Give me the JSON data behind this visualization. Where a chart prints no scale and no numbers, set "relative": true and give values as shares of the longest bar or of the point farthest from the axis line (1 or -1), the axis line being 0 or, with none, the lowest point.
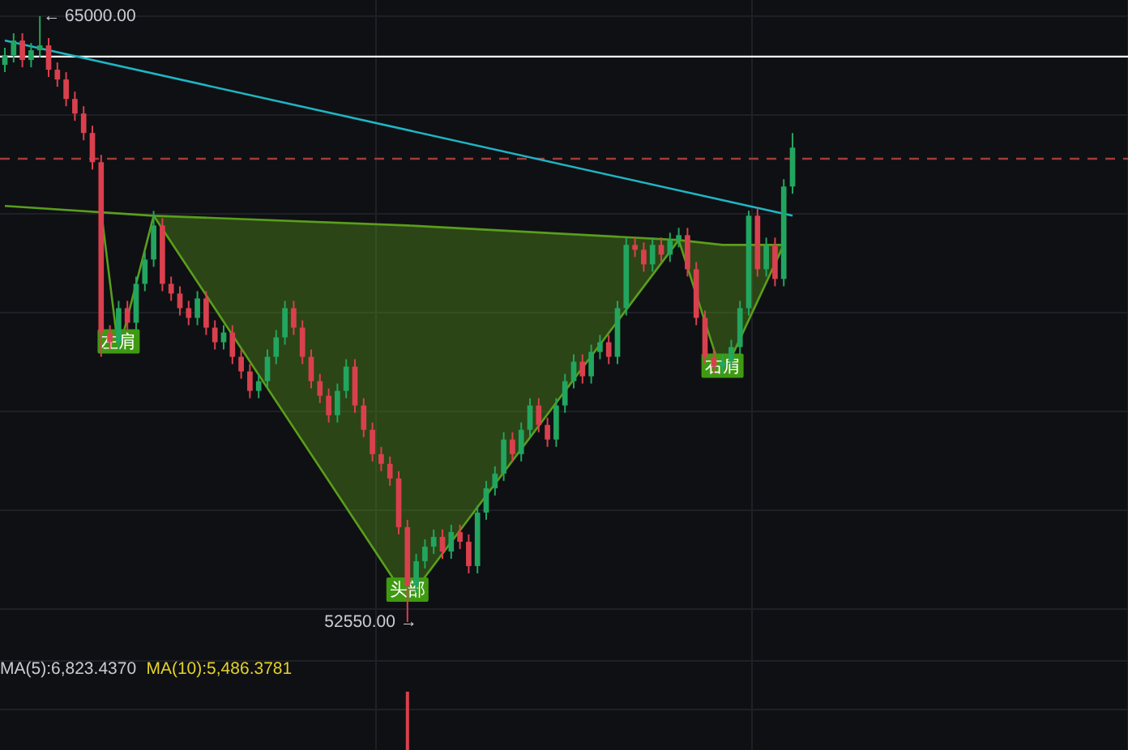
{
  "chart_data": [
    {
      "type": "candlestick",
      "categories": [
        null,
        null,
        null,
        null,
        null,
        null,
        null,
        null,
        null,
        null,
        null,
        null,
        null,
        null,
        null,
        null,
        null,
        null,
        null,
        null,
        null,
        null,
        null,
        null,
        null,
        null,
        null,
        null,
        null,
        null,
        null,
        null,
        null,
        null,
        null,
        null,
        null,
        null,
        null,
        null,
        null,
        null,
        null,
        null,
        null,
        null,
        null,
        null,
        null,
        null,
        null,
        null,
        null,
        null,
        null,
        null,
        null,
        null,
        null,
        null,
        null,
        null,
        null,
        null,
        null,
        null,
        null,
        null,
        null,
        null,
        null,
        null,
        null,
        null,
        null,
        null,
        null,
        null,
        null,
        null,
        null,
        null,
        null,
        null,
        null,
        null,
        null,
        null,
        null,
        null,
        null
      ],
      "ohlc": [
        [
          64000,
          64350,
          63850,
          64200
        ],
        [
          64200,
          64650,
          64050,
          64500
        ],
        [
          64500,
          64650,
          63950,
          64100
        ],
        [
          64100,
          64450,
          63950,
          64300
        ],
        [
          64300,
          65000,
          64150,
          64400
        ],
        [
          64400,
          64550,
          63750,
          63900
        ],
        [
          63900,
          64050,
          63550,
          63700
        ],
        [
          63700,
          63850,
          63150,
          63300
        ],
        [
          63300,
          63450,
          62850,
          63000
        ],
        [
          63000,
          63150,
          62450,
          62600
        ],
        [
          62600,
          62750,
          61850,
          62000
        ],
        [
          62000,
          62150,
          58000,
          58500
        ],
        [
          58500,
          58650,
          58150,
          58300
        ],
        [
          58300,
          59150,
          58150,
          59000
        ],
        [
          59000,
          59150,
          58550,
          58700
        ],
        [
          58700,
          59650,
          58550,
          59500
        ],
        [
          59500,
          60150,
          59350,
          60000
        ],
        [
          60000,
          61000,
          59850,
          60700
        ],
        [
          60700,
          60850,
          59350,
          59500
        ],
        [
          59500,
          59650,
          59150,
          59300
        ],
        [
          59300,
          59450,
          58850,
          59000
        ],
        [
          59000,
          59150,
          58650,
          58800
        ],
        [
          58800,
          59350,
          58650,
          59200
        ],
        [
          59200,
          59350,
          58450,
          58600
        ],
        [
          58600,
          58750,
          58150,
          58300
        ],
        [
          58300,
          58650,
          58150,
          58500
        ],
        [
          58500,
          58650,
          57850,
          58000
        ],
        [
          58000,
          58150,
          57550,
          57700
        ],
        [
          57700,
          57850,
          57150,
          57300
        ],
        [
          57300,
          57650,
          57150,
          57500
        ],
        [
          57500,
          58150,
          57350,
          58000
        ],
        [
          58000,
          58550,
          57850,
          58400
        ],
        [
          58400,
          59150,
          58250,
          59000
        ],
        [
          59000,
          59150,
          58450,
          58600
        ],
        [
          58600,
          58750,
          57850,
          58000
        ],
        [
          58000,
          58150,
          57350,
          57500
        ],
        [
          57500,
          57650,
          57050,
          57200
        ],
        [
          57200,
          57350,
          56650,
          56800
        ],
        [
          56800,
          57450,
          56650,
          57300
        ],
        [
          57300,
          57950,
          57150,
          57800
        ],
        [
          57800,
          57950,
          56850,
          57000
        ],
        [
          57000,
          57150,
          56350,
          56500
        ],
        [
          56500,
          56650,
          55850,
          56000
        ],
        [
          56000,
          56150,
          55650,
          55800
        ],
        [
          55800,
          55950,
          55350,
          55500
        ],
        [
          55500,
          55650,
          54350,
          54500
        ],
        [
          54500,
          54650,
          52550,
          53300
        ],
        [
          53300,
          53950,
          53150,
          53800
        ],
        [
          53800,
          54250,
          53650,
          54100
        ],
        [
          54100,
          54450,
          53950,
          54300
        ],
        [
          54300,
          54450,
          53850,
          54000
        ],
        [
          54000,
          54550,
          53850,
          54400
        ],
        [
          54400,
          54550,
          54050,
          54200
        ],
        [
          54200,
          54350,
          53550,
          53700
        ],
        [
          53700,
          54950,
          53550,
          54800
        ],
        [
          54800,
          55450,
          54650,
          55300
        ],
        [
          55300,
          55750,
          55150,
          55600
        ],
        [
          55600,
          56450,
          55450,
          56300
        ],
        [
          56300,
          56450,
          55850,
          56000
        ],
        [
          56000,
          56650,
          55850,
          56500
        ],
        [
          56500,
          57150,
          56350,
          57000
        ],
        [
          57000,
          57150,
          56450,
          56600
        ],
        [
          56600,
          56750,
          56150,
          56300
        ],
        [
          56300,
          57150,
          56150,
          57000
        ],
        [
          57000,
          57650,
          56850,
          57500
        ],
        [
          57500,
          58050,
          57350,
          57900
        ],
        [
          57900,
          58050,
          57450,
          57600
        ],
        [
          57600,
          58250,
          57450,
          58100
        ],
        [
          58100,
          58450,
          57950,
          58300
        ],
        [
          58300,
          58450,
          57850,
          58000
        ],
        [
          58000,
          59150,
          57850,
          59000
        ],
        [
          59000,
          60450,
          58850,
          60300
        ],
        [
          60300,
          60450,
          60050,
          60200
        ],
        [
          60200,
          60350,
          59750,
          59900
        ],
        [
          59900,
          60450,
          59750,
          60300
        ],
        [
          60300,
          60450,
          59950,
          60100
        ],
        [
          60100,
          60550,
          59950,
          60400
        ],
        [
          60400,
          60650,
          60250,
          60500
        ],
        [
          60500,
          60650,
          59650,
          59800
        ],
        [
          59800,
          59950,
          58650,
          58800
        ],
        [
          58800,
          58950,
          57850,
          58000
        ],
        [
          58000,
          58150,
          57650,
          57800
        ],
        [
          57800,
          58050,
          57650,
          57900
        ],
        [
          57900,
          58350,
          57750,
          58200
        ],
        [
          58200,
          59150,
          58050,
          59000
        ],
        [
          59000,
          61000,
          58850,
          60900
        ],
        [
          60900,
          61050,
          59650,
          59800
        ],
        [
          59800,
          60450,
          59650,
          60300
        ],
        [
          60300,
          60450,
          59450,
          59600
        ],
        [
          59600,
          61650,
          59450,
          61500
        ],
        [
          61500,
          62600,
          61350,
          62300
        ]
      ],
      "colors": [
        "#22a55f",
        "#22a55f",
        "#d9404e",
        "#22a55f",
        "#22a55f",
        "#d9404e",
        "#d9404e",
        "#d9404e",
        "#d9404e",
        "#d9404e",
        "#d9404e",
        "#d9404e",
        "#d9404e",
        "#22a55f",
        "#d9404e",
        "#22a55f",
        "#22a55f",
        "#22a55f",
        "#d9404e",
        "#d9404e",
        "#d9404e",
        "#d9404e",
        "#22a55f",
        "#d9404e",
        "#d9404e",
        "#22a55f",
        "#d9404e",
        "#d9404e",
        "#d9404e",
        "#22a55f",
        "#22a55f",
        "#22a55f",
        "#22a55f",
        "#d9404e",
        "#d9404e",
        "#d9404e",
        "#d9404e",
        "#d9404e",
        "#22a55f",
        "#22a55f",
        "#d9404e",
        "#d9404e",
        "#d9404e",
        "#d9404e",
        "#d9404e",
        "#d9404e",
        "#d9404e",
        "#22a55f",
        "#22a55f",
        "#22a55f",
        "#d9404e",
        "#22a55f",
        "#d9404e",
        "#d9404e",
        "#22a55f",
        "#22a55f",
        "#22a55f",
        "#22a55f",
        "#d9404e",
        "#22a55f",
        "#22a55f",
        "#d9404e",
        "#d9404e",
        "#22a55f",
        "#22a55f",
        "#22a55f",
        "#d9404e",
        "#22a55f",
        "#22a55f",
        "#d9404e",
        "#22a55f",
        "#22a55f",
        "#d9404e",
        "#d9404e",
        "#22a55f",
        "#d9404e",
        "#22a55f",
        "#22a55f",
        "#d9404e",
        "#d9404e",
        "#d9404e",
        "#d9404e",
        "#22a55f",
        "#22a55f",
        "#22a55f",
        "#22a55f",
        "#d9404e",
        "#22a55f",
        "#d9404e",
        "#22a55f",
        "#22a55f"
      ],
      "series": [
        {
          "type": "line",
          "color": "#1fb5c4",
          "values": [
            64500,
            null,
            null,
            null,
            null,
            null,
            null,
            null,
            null,
            null,
            null,
            null,
            null,
            null,
            null,
            null,
            null,
            null,
            null,
            null,
            null,
            null,
            null,
            null,
            null,
            null,
            null,
            null,
            null,
            null,
            null,
            null,
            null,
            null,
            null,
            null,
            null,
            null,
            null,
            null,
            null,
            null,
            null,
            null,
            null,
            null,
            null,
            null,
            null,
            null,
            null,
            null,
            null,
            null,
            null,
            null,
            null,
            null,
            null,
            null,
            null,
            null,
            null,
            null,
            null,
            null,
            null,
            null,
            null,
            null,
            null,
            null,
            null,
            null,
            null,
            null,
            null,
            null,
            null,
            null,
            null,
            null,
            null,
            null,
            null,
            null,
            null,
            null,
            null,
            null,
            60900
          ]
        },
        {
          "type": "line",
          "color": "#5a9e1c",
          "values": [
            61100,
            null,
            null,
            null,
            null,
            null,
            null,
            null,
            null,
            null,
            null,
            null,
            null,
            null,
            null,
            null,
            null,
            60900,
            null,
            null,
            null,
            null,
            null,
            null,
            null,
            null,
            null,
            null,
            null,
            null,
            null,
            null,
            null,
            null,
            null,
            null,
            null,
            null,
            null,
            null,
            null,
            null,
            null,
            null,
            null,
            null,
            60700,
            null,
            null,
            null,
            null,
            null,
            null,
            null,
            null,
            null,
            null,
            null,
            null,
            null,
            null,
            null,
            null,
            null,
            null,
            null,
            null,
            null,
            null,
            null,
            null,
            null,
            null,
            null,
            null,
            null,
            null,
            60400,
            null,
            null,
            null,
            null,
            60300,
            null,
            null,
            null,
            null,
            null,
            null,
            60300,
            null
          ],
          "lower": [
            null,
            null,
            null,
            null,
            null,
            null,
            null,
            null,
            null,
            null,
            null,
            null,
            null,
            null,
            null,
            null,
            null,
            60900,
            null,
            null,
            null,
            null,
            null,
            null,
            null,
            null,
            null,
            null,
            null,
            null,
            null,
            null,
            null,
            null,
            null,
            null,
            null,
            null,
            null,
            null,
            null,
            null,
            null,
            null,
            null,
            null,
            53000,
            null,
            null,
            null,
            null,
            null,
            null,
            null,
            null,
            null,
            null,
            null,
            null,
            null,
            null,
            null,
            null,
            null,
            null,
            null,
            null,
            null,
            null,
            null,
            null,
            null,
            null,
            null,
            null,
            null,
            null,
            60400,
            null,
            null,
            null,
            null,
            57600,
            null,
            null,
            null,
            null,
            null,
            null,
            60300,
            null
          ],
          "upper": [
            null,
            null,
            null,
            null,
            null,
            null,
            null,
            null,
            null,
            null,
            null,
            null,
            null,
            null,
            null,
            null,
            null,
            60900,
            null,
            null,
            null,
            null,
            null,
            null,
            null,
            null,
            null,
            null,
            null,
            null,
            null,
            null,
            null,
            null,
            null,
            null,
            null,
            null,
            null,
            null,
            null,
            null,
            null,
            null,
            null,
            null,
            60700,
            null,
            null,
            null,
            null,
            null,
            null,
            null,
            null,
            null,
            null,
            null,
            null,
            null,
            null,
            null,
            null,
            null,
            null,
            null,
            null,
            null,
            null,
            null,
            null,
            null,
            null,
            null,
            null,
            null,
            null,
            60400,
            null,
            null,
            null,
            null,
            60300,
            null,
            null,
            null,
            null,
            null,
            null,
            60300,
            null
          ]
        },
        {
          "type": "line",
          "color": "#5a9e1c",
          "values": [
            null,
            null,
            null,
            null,
            null,
            null,
            null,
            null,
            null,
            null,
            null,
            61000,
            null,
            58100,
            null,
            null,
            null,
            60900,
            null,
            null,
            null,
            null,
            null,
            null,
            null,
            null,
            null,
            null,
            null,
            null,
            null,
            null,
            null,
            null,
            null,
            null,
            null,
            null,
            null,
            null,
            null,
            null,
            null,
            null,
            null,
            null,
            53000,
            null,
            null,
            null,
            null,
            null,
            null,
            null,
            null,
            null,
            null,
            null,
            null,
            null,
            null,
            null,
            null,
            null,
            null,
            null,
            null,
            null,
            null,
            null,
            null,
            null,
            null,
            null,
            null,
            null,
            null,
            60400,
            null,
            null,
            null,
            null,
            57600,
            null,
            null,
            null,
            null,
            null,
            null,
            60300,
            null
          ]
        }
      ],
      "ref_lines": [
        {
          "axis": "y",
          "value": 64170,
          "color": "#ffffff",
          "line_style": "solid"
        },
        {
          "axis": "y",
          "value": 62070,
          "color": "#a33a3a",
          "line_style": "dashed"
        }
      ],
      "annotations": [
        "左肩",
        "头部",
        "右肩",
        "← 65000.00",
        "52550.00 →"
      ],
      "grid": true
    },
    {
      "type": "bar",
      "relative": true,
      "color": "#d9404e",
      "categories": [
        null,
        null,
        null,
        null,
        null,
        null,
        null,
        null,
        null,
        null,
        null,
        null,
        null,
        null,
        null,
        null,
        null,
        null,
        null,
        null,
        null,
        null,
        null,
        null,
        null,
        null,
        null,
        null,
        null,
        null,
        null,
        null,
        null,
        null,
        null,
        null,
        null,
        null,
        null,
        null,
        null,
        null,
        null,
        null,
        null,
        null,
        null,
        null,
        null,
        null,
        null,
        null,
        null,
        null,
        null,
        null,
        null,
        null,
        null,
        null,
        null,
        null,
        null,
        null,
        null,
        null,
        null,
        null,
        null,
        null,
        null,
        null,
        null,
        null,
        null,
        null,
        null,
        null,
        null,
        null,
        null,
        null,
        null,
        null,
        null,
        null,
        null,
        null,
        null,
        null,
        null
      ],
      "values": [
        null,
        null,
        null,
        null,
        null,
        null,
        null,
        null,
        null,
        null,
        null,
        null,
        null,
        null,
        null,
        null,
        null,
        null,
        null,
        null,
        null,
        null,
        null,
        null,
        null,
        null,
        null,
        null,
        null,
        null,
        null,
        null,
        null,
        null,
        null,
        null,
        null,
        null,
        null,
        null,
        null,
        null,
        null,
        null,
        null,
        null,
        1,
        null,
        null,
        null,
        null,
        null,
        null,
        null,
        null,
        null,
        null,
        null,
        null,
        null,
        null,
        null,
        null,
        null,
        null,
        null,
        null,
        null,
        null,
        null,
        null,
        null,
        null,
        null,
        null,
        null,
        null,
        null,
        null,
        null,
        null,
        null,
        null,
        null,
        null,
        null,
        null,
        null,
        null,
        null,
        null
      ],
      "annotations": [
        "MA(5):6,823.4370",
        "MA(10):5,486.3781"
      ],
      "grid": true
    }
  ]
}
